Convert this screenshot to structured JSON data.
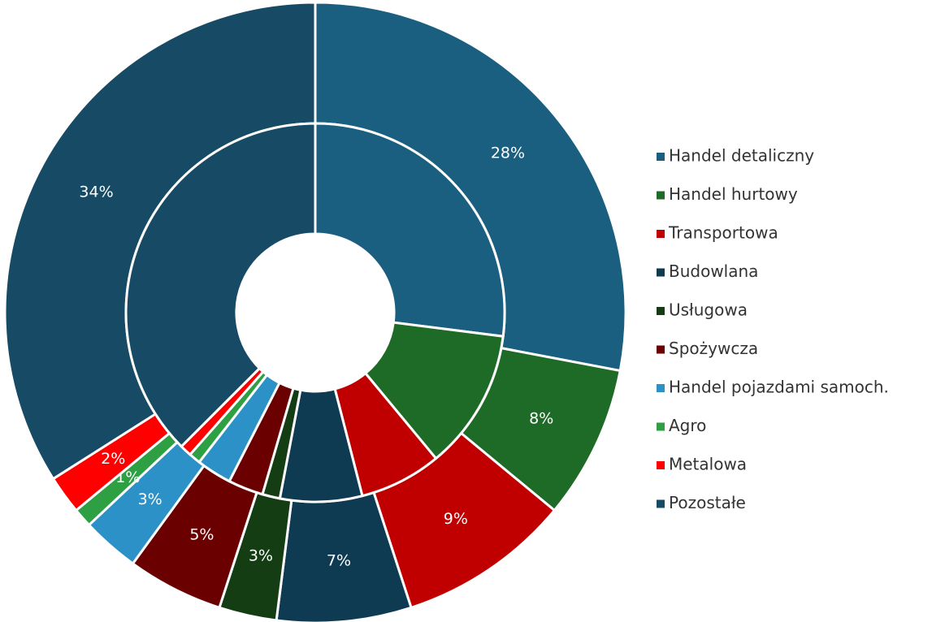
{
  "chart_data": {
    "type": "pie",
    "categories": [
      "Handel detaliczny",
      "Handel hurtowy",
      "Transportowa",
      "Budowlana",
      "Usługowa",
      "Spożywcza",
      "Handel pojazdami samoch.",
      "Agro",
      "Metalowa",
      "Pozostałe"
    ],
    "colors": [
      "#1a5e80",
      "#1e6b27",
      "#c00000",
      "#0e3a52",
      "#143d14",
      "#6b0000",
      "#2b91c7",
      "#2ea043",
      "#ff0000",
      "#164a65"
    ],
    "series": [
      {
        "values": [
          28,
          8,
          9,
          7,
          3,
          5,
          3,
          1,
          2,
          34
        ],
        "value_labels": [
          "28%",
          "8%",
          "9%",
          "7%",
          "3%",
          "5%",
          "3%",
          "1%",
          "2%",
          "34%"
        ]
      },
      {
        "values": [
          27,
          12,
          7,
          7,
          1.5,
          3,
          3,
          1,
          1,
          37.5
        ]
      }
    ],
    "legend": "right"
  }
}
